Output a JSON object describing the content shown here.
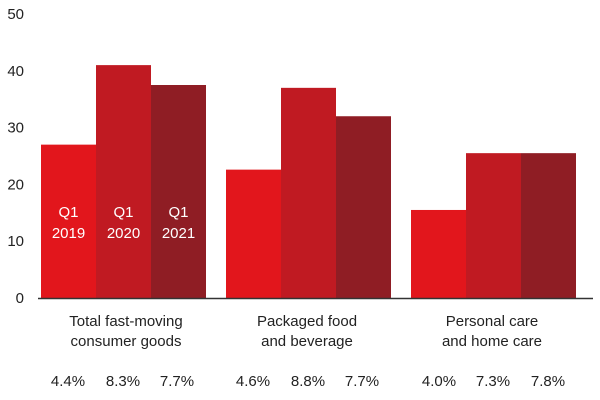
{
  "chart_data": {
    "type": "bar",
    "yticks": [
      0,
      10,
      20,
      30,
      40,
      50
    ],
    "ylim": [
      0,
      50
    ],
    "categories": [
      "Total fast-moving consumer goods",
      "Packaged food and beverage",
      "Personal care and home care"
    ],
    "category_lines": [
      [
        "Total fast-moving",
        "consumer goods"
      ],
      [
        "Packaged food",
        "and beverage"
      ],
      [
        "Personal care",
        "and home care"
      ]
    ],
    "series": [
      {
        "name": "Q1 2019",
        "label_lines": [
          "Q1",
          "2019"
        ],
        "color": "#e2161c",
        "values": [
          27,
          22.6,
          15.5
        ]
      },
      {
        "name": "Q1 2020",
        "label_lines": [
          "Q1",
          "2020"
        ],
        "color": "#c01a22",
        "values": [
          41,
          37,
          25.5
        ]
      },
      {
        "name": "Q1 2021",
        "label_lines": [
          "Q1",
          "2021"
        ],
        "color": "#8f1d24",
        "values": [
          37.5,
          32,
          25.5
        ]
      }
    ],
    "growth_rates": [
      [
        "4.4%",
        "8.3%",
        "7.7%"
      ],
      [
        "4.6%",
        "8.8%",
        "7.7%"
      ],
      [
        "4.0%",
        "7.3%",
        "7.8%"
      ]
    ]
  }
}
